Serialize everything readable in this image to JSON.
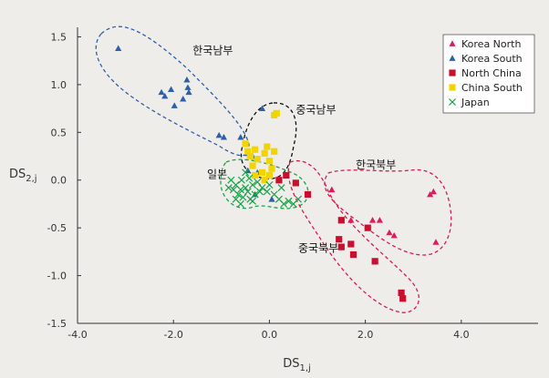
{
  "chart_data": {
    "type": "scatter",
    "xlabel": "DS",
    "xlabel_sub": "1,j",
    "ylabel": "DS",
    "ylabel_sub": "2,j",
    "xlim": [
      -4.0,
      5.6
    ],
    "ylim": [
      -1.5,
      1.6
    ],
    "xticks": [
      -4.0,
      -2.0,
      0.0,
      2.0,
      4.0
    ],
    "xtick_labels": [
      "-4.0",
      "-2.0",
      "0.0",
      "2.0",
      "4.0"
    ],
    "yticks": [
      1.5,
      1.0,
      0.5,
      0.0,
      -0.5,
      -1.0,
      -1.5
    ],
    "ytick_labels": [
      "1.5",
      "1.0",
      "0.5",
      "0.0",
      "-0.5",
      "-1.0",
      "-1.5"
    ],
    "grid": false,
    "legend_position": "top-right",
    "series": [
      {
        "name": "Korea North",
        "marker": "triangle",
        "color": "#e0195c",
        "points": [
          [
            1.3,
            -0.1
          ],
          [
            2.15,
            -0.42
          ],
          [
            2.3,
            -0.42
          ],
          [
            2.5,
            -0.55
          ],
          [
            2.6,
            -0.58
          ],
          [
            3.35,
            -0.15
          ],
          [
            3.42,
            -0.12
          ],
          [
            3.47,
            -0.65
          ],
          [
            1.7,
            -0.42
          ]
        ]
      },
      {
        "name": "Korea South",
        "marker": "triangle",
        "color": "#2e5fa8",
        "points": [
          [
            -3.15,
            1.38
          ],
          [
            -2.25,
            0.92
          ],
          [
            -2.18,
            0.88
          ],
          [
            -2.05,
            0.95
          ],
          [
            -1.98,
            0.78
          ],
          [
            -1.8,
            0.85
          ],
          [
            -1.72,
            1.05
          ],
          [
            -1.68,
            0.92
          ],
          [
            -1.7,
            0.97
          ],
          [
            -1.05,
            0.47
          ],
          [
            -0.95,
            0.45
          ],
          [
            -0.6,
            0.45
          ],
          [
            -0.45,
            0.28
          ],
          [
            -0.35,
            0.25
          ],
          [
            -0.15,
            0.75
          ],
          [
            0.1,
            0.7
          ],
          [
            -0.45,
            0.1
          ],
          [
            -0.25,
            0.08
          ],
          [
            0.05,
            -0.2
          ],
          [
            -0.3,
            -0.15
          ]
        ]
      },
      {
        "name": "North China",
        "marker": "square",
        "color": "#c8102e",
        "points": [
          [
            0.35,
            0.05
          ],
          [
            0.2,
            0.0
          ],
          [
            0.55,
            -0.03
          ],
          [
            0.8,
            -0.15
          ],
          [
            1.5,
            -0.42
          ],
          [
            1.45,
            -0.62
          ],
          [
            1.5,
            -0.7
          ],
          [
            1.7,
            -0.67
          ],
          [
            1.75,
            -0.78
          ],
          [
            2.05,
            -0.5
          ],
          [
            2.2,
            -0.85
          ],
          [
            2.75,
            -1.18
          ],
          [
            2.78,
            -1.24
          ]
        ]
      },
      {
        "name": "China South",
        "marker": "square",
        "color": "#f2d500",
        "points": [
          [
            0.1,
            0.68
          ],
          [
            0.15,
            0.7
          ],
          [
            -0.5,
            0.38
          ],
          [
            -0.45,
            0.3
          ],
          [
            -0.4,
            0.25
          ],
          [
            -0.3,
            0.32
          ],
          [
            -0.25,
            0.22
          ],
          [
            -0.1,
            0.28
          ],
          [
            -0.05,
            0.35
          ],
          [
            0.0,
            0.2
          ],
          [
            0.05,
            0.12
          ],
          [
            0.1,
            0.3
          ],
          [
            -0.35,
            0.15
          ],
          [
            -0.3,
            0.05
          ],
          [
            -0.15,
            0.08
          ],
          [
            0.0,
            0.05
          ],
          [
            -0.1,
            0.0
          ]
        ]
      },
      {
        "name": "Japan",
        "marker": "x",
        "color": "#1aa34a",
        "points": [
          [
            -0.8,
            0.0
          ],
          [
            -0.75,
            -0.1
          ],
          [
            -0.7,
            -0.05
          ],
          [
            -0.65,
            -0.15
          ],
          [
            -0.6,
            -0.1
          ],
          [
            -0.58,
            0.0
          ],
          [
            -0.55,
            -0.18
          ],
          [
            -0.5,
            -0.08
          ],
          [
            -0.45,
            -0.12
          ],
          [
            -0.42,
            0.02
          ],
          [
            -0.4,
            -0.2
          ],
          [
            -0.35,
            -0.05
          ],
          [
            -0.3,
            -0.15
          ],
          [
            -0.25,
            -0.02
          ],
          [
            -0.2,
            -0.12
          ],
          [
            -0.15,
            -0.08
          ],
          [
            -0.05,
            -0.12
          ],
          [
            0.0,
            -0.05
          ],
          [
            0.1,
            -0.15
          ],
          [
            0.2,
            -0.2
          ],
          [
            0.3,
            -0.25
          ],
          [
            0.4,
            -0.22
          ],
          [
            0.5,
            -0.25
          ],
          [
            0.6,
            -0.2
          ],
          [
            0.25,
            -0.08
          ],
          [
            -0.7,
            -0.2
          ],
          [
            -0.6,
            -0.25
          ],
          [
            -0.5,
            0.08
          ],
          [
            -0.85,
            -0.08
          ],
          [
            -0.35,
            -0.22
          ]
        ]
      }
    ],
    "annotations": [
      {
        "text": "한국남부",
        "x": -1.6,
        "y": 1.32
      },
      {
        "text": "중국남부",
        "x": 0.55,
        "y": 0.7
      },
      {
        "text": "한국북부",
        "x": 1.8,
        "y": 0.12
      },
      {
        "text": "일본",
        "x": -1.3,
        "y": 0.02
      },
      {
        "text": "중국북부",
        "x": 0.6,
        "y": -0.75
      }
    ]
  }
}
